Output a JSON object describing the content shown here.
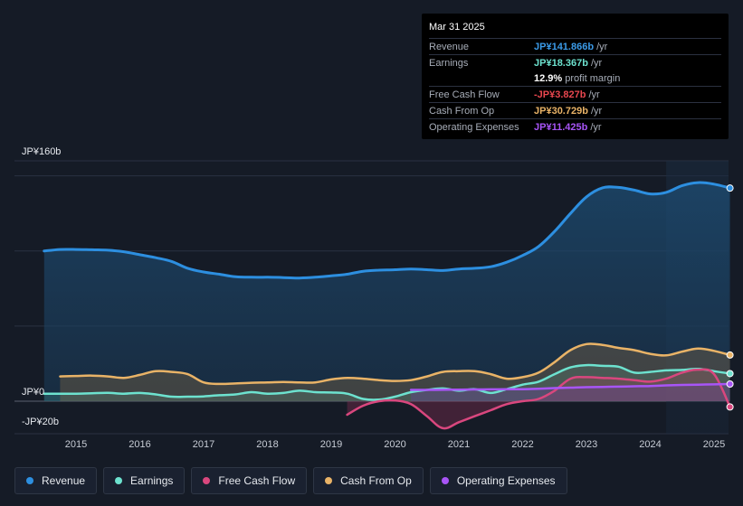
{
  "tooltip": {
    "date": "Mar 31 2025",
    "rows": [
      {
        "label": "Revenue",
        "value": "JP¥141.866b",
        "unit": "/yr",
        "color": "#3b9be8"
      },
      {
        "label": "Earnings",
        "value": "JP¥18.367b",
        "unit": "/yr",
        "color": "#6de2cf"
      },
      {
        "label": "",
        "value": "12.9%",
        "unit": "profit margin",
        "color": "#ffffff"
      },
      {
        "label": "Free Cash Flow",
        "value": "-JP¥3.827b",
        "unit": "/yr",
        "color": "#e8474f"
      },
      {
        "label": "Cash From Op",
        "value": "JP¥30.729b",
        "unit": "/yr",
        "color": "#e9b367"
      },
      {
        "label": "Operating Expenses",
        "value": "JP¥11.425b",
        "unit": "/yr",
        "color": "#a855f7"
      }
    ]
  },
  "legend": [
    {
      "label": "Revenue",
      "color": "#2d8fe0"
    },
    {
      "label": "Earnings",
      "color": "#6de2cf"
    },
    {
      "label": "Free Cash Flow",
      "color": "#d9477e"
    },
    {
      "label": "Cash From Op",
      "color": "#e9b367"
    },
    {
      "label": "Operating Expenses",
      "color": "#a855f7"
    }
  ],
  "chart_data": {
    "type": "line",
    "title": "",
    "xlabel": "",
    "ylabel": "",
    "ylim": [
      -20,
      160
    ],
    "y_tick_labels": [
      "JP¥160b",
      "JP¥0",
      "-JP¥20b"
    ],
    "x_tick_labels": [
      "2015",
      "2016",
      "2017",
      "2018",
      "2019",
      "2020",
      "2021",
      "2022",
      "2023",
      "2024",
      "2025"
    ],
    "xlim": [
      2014.5,
      2025.25
    ],
    "highlight_start": 2024.25,
    "series": [
      {
        "name": "Revenue",
        "color": "#2d8fe0",
        "x": [
          2014.5,
          2014.75,
          2015.0,
          2015.25,
          2015.5,
          2015.75,
          2016.0,
          2016.25,
          2016.5,
          2016.75,
          2017.0,
          2017.25,
          2017.5,
          2017.75,
          2018.0,
          2018.25,
          2018.5,
          2018.75,
          2019.0,
          2019.25,
          2019.5,
          2019.75,
          2020.0,
          2020.25,
          2020.5,
          2020.75,
          2021.0,
          2021.25,
          2021.5,
          2021.75,
          2022.0,
          2022.25,
          2022.5,
          2022.75,
          2023.0,
          2023.25,
          2023.5,
          2023.75,
          2024.0,
          2024.25,
          2024.5,
          2024.75,
          2025.0,
          2025.25
        ],
        "values": [
          100,
          101,
          101,
          100.8,
          100.5,
          99.5,
          97.5,
          95.5,
          93,
          88.5,
          86,
          84.5,
          82.8,
          82.5,
          82.5,
          82.3,
          82,
          82.5,
          83.5,
          84.5,
          86.5,
          87.2,
          87.5,
          88,
          87.5,
          87,
          88,
          88.5,
          89.5,
          92.5,
          97,
          103,
          113,
          125,
          136,
          142,
          142.3,
          140.5,
          138,
          139,
          143.5,
          145.5,
          144.5,
          141.866
        ]
      },
      {
        "name": "Earnings",
        "color": "#6de2cf",
        "x": [
          2014.5,
          2014.75,
          2015.0,
          2015.25,
          2015.5,
          2015.75,
          2016.0,
          2016.25,
          2016.5,
          2016.75,
          2017.0,
          2017.25,
          2017.5,
          2017.75,
          2018.0,
          2018.25,
          2018.5,
          2018.75,
          2019.0,
          2019.25,
          2019.5,
          2019.75,
          2020.0,
          2020.25,
          2020.5,
          2020.75,
          2021.0,
          2021.25,
          2021.5,
          2021.75,
          2022.0,
          2022.25,
          2022.5,
          2022.75,
          2023.0,
          2023.25,
          2023.5,
          2023.75,
          2024.0,
          2024.25,
          2024.5,
          2024.75,
          2025.0,
          2025.25
        ],
        "values": [
          5,
          5,
          5,
          5.3,
          5.6,
          5,
          5.5,
          4.5,
          3,
          3,
          3.2,
          4,
          4.5,
          6,
          5,
          5.5,
          7,
          6,
          5.8,
          5,
          1.5,
          1,
          3,
          6,
          7.5,
          8.5,
          7,
          8,
          5.5,
          8,
          11,
          13,
          18,
          22.5,
          24,
          23.5,
          23,
          19,
          19.5,
          20.5,
          20.8,
          21.5,
          20,
          18.367
        ]
      },
      {
        "name": "Free Cash Flow",
        "color": "#d9477e",
        "x": [
          2019.25,
          2019.5,
          2019.75,
          2020.0,
          2020.25,
          2020.5,
          2020.75,
          2021.0,
          2021.25,
          2021.5,
          2021.75,
          2022.0,
          2022.25,
          2022.5,
          2022.75,
          2023.0,
          2023.25,
          2023.5,
          2023.75,
          2024.0,
          2024.25,
          2024.5,
          2024.75,
          2025.0,
          2025.25
        ],
        "values": [
          -9,
          -3,
          0,
          0.5,
          -2,
          -10,
          -18,
          -14,
          -10,
          -6,
          -2,
          0,
          1.5,
          7,
          15,
          16,
          15.5,
          15,
          14,
          13,
          15,
          19,
          21,
          18,
          -3.827
        ]
      },
      {
        "name": "Cash From Op",
        "color": "#e9b367",
        "x": [
          2014.75,
          2015.0,
          2015.25,
          2015.5,
          2015.75,
          2016.0,
          2016.25,
          2016.5,
          2016.75,
          2017.0,
          2017.25,
          2017.5,
          2017.75,
          2018.0,
          2018.25,
          2018.5,
          2018.75,
          2019.0,
          2019.25,
          2019.5,
          2019.75,
          2020.0,
          2020.25,
          2020.5,
          2020.75,
          2021.0,
          2021.25,
          2021.5,
          2021.75,
          2022.0,
          2022.25,
          2022.5,
          2022.75,
          2023.0,
          2023.25,
          2023.5,
          2023.75,
          2024.0,
          2024.25,
          2024.5,
          2024.75,
          2025.0,
          2025.25
        ],
        "values": [
          16.5,
          16.8,
          17,
          16.5,
          15.5,
          17.5,
          20,
          19.5,
          18,
          12.5,
          11.5,
          11.8,
          12.3,
          12.5,
          12.8,
          12.5,
          12.5,
          14.5,
          15.5,
          15,
          14,
          13.5,
          14,
          16.5,
          19.5,
          20,
          20,
          18,
          15,
          16,
          19,
          26,
          34,
          38,
          37.5,
          35.5,
          34,
          31.5,
          30.5,
          33,
          35,
          33.5,
          30.729
        ]
      },
      {
        "name": "Operating Expenses",
        "color": "#a855f7",
        "x": [
          2020.25,
          2020.5,
          2020.75,
          2021.0,
          2021.25,
          2021.5,
          2021.75,
          2022.0,
          2022.25,
          2022.5,
          2022.75,
          2023.0,
          2023.25,
          2023.5,
          2023.75,
          2024.0,
          2024.25,
          2024.5,
          2024.75,
          2025.0,
          2025.25
        ],
        "values": [
          7.5,
          7.5,
          7.6,
          7.7,
          7.8,
          7.9,
          8,
          8,
          8.3,
          8.7,
          9,
          9.3,
          9.5,
          9.7,
          9.9,
          10.1,
          10.5,
          10.8,
          11,
          11.2,
          11.425
        ]
      }
    ]
  }
}
